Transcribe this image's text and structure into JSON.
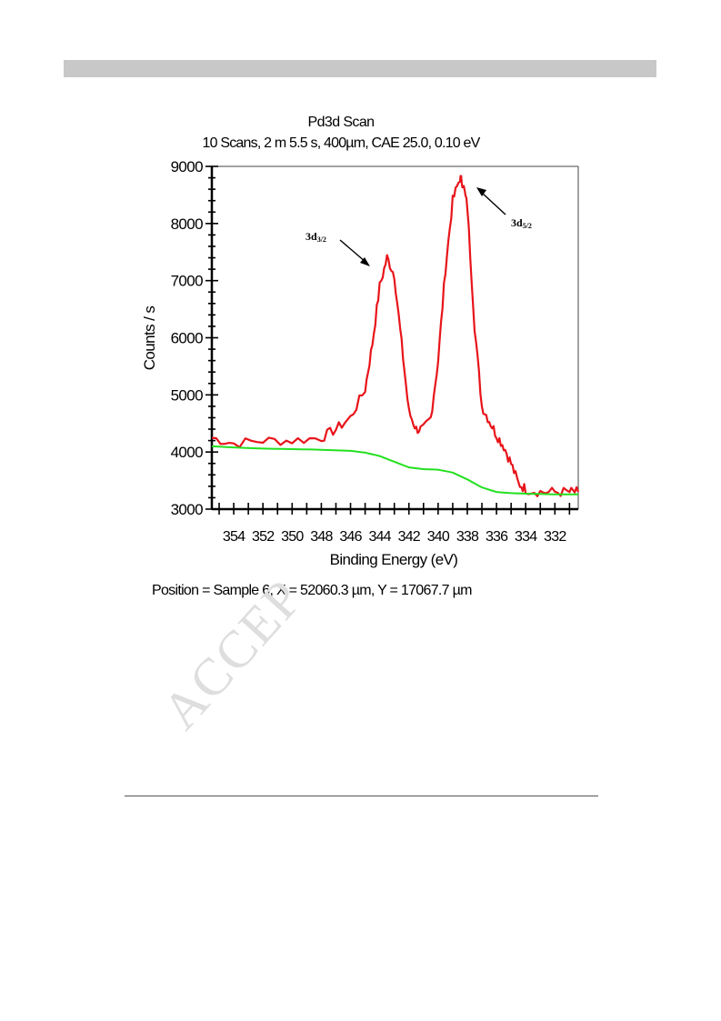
{
  "chart_data": {
    "type": "line",
    "title": "Pd3d Scan",
    "subtitle": "10 Scans,  2 m 5.5 s,  400µm,  CAE 25.0,  0.10 eV",
    "xlabel": "Binding Energy (eV)",
    "ylabel": "Counts / s",
    "x_reversed": true,
    "xlim": [
      355.5,
      330.4
    ],
    "ylim": [
      3000,
      9000
    ],
    "x_ticks": [
      "354",
      "352",
      "350",
      "348",
      "346",
      "344",
      "342",
      "340",
      "338",
      "336",
      "334",
      "332"
    ],
    "y_ticks": [
      "3000",
      "4000",
      "5000",
      "6000",
      "7000",
      "8000",
      "9000"
    ],
    "grid": false,
    "series": [
      {
        "color": "#e8141a",
        "x": [
          355.5,
          354,
          352,
          350,
          348,
          347,
          346,
          345,
          344.5,
          344,
          343.5,
          343,
          342.5,
          342,
          341.5,
          341,
          340.5,
          340,
          339.5,
          339,
          338.5,
          338.3,
          338,
          337.5,
          337,
          336.5,
          336,
          335.5,
          335,
          334.5,
          334,
          333,
          332,
          331,
          330.4
        ],
        "y": [
          4250,
          4150,
          4200,
          4200,
          4250,
          4400,
          4600,
          5100,
          5900,
          6900,
          7400,
          7100,
          5900,
          4700,
          4400,
          4400,
          4600,
          5600,
          7200,
          8400,
          8800,
          8700,
          8300,
          6200,
          4800,
          4550,
          4300,
          4100,
          3800,
          3450,
          3350,
          3300,
          3300,
          3300,
          3300
        ]
      },
      {
        "color": "#22e01e",
        "x": [
          355.5,
          354,
          352,
          350,
          348,
          346,
          345,
          344,
          343,
          342,
          341,
          340,
          339,
          338,
          337,
          336,
          335,
          334,
          333,
          332,
          331,
          330.4
        ],
        "y": [
          4100,
          4080,
          4060,
          4050,
          4040,
          4020,
          3990,
          3930,
          3830,
          3730,
          3700,
          3690,
          3640,
          3520,
          3380,
          3300,
          3280,
          3270,
          3265,
          3260,
          3260,
          3260
        ]
      }
    ],
    "annotations": [
      {
        "text": "3d",
        "sub": "3/2"
      },
      {
        "text": "3d",
        "sub": "5/2"
      }
    ],
    "caption": "Position = Sample 6, X = 52060.3 µm, Y = 17067.7 µm"
  },
  "watermark": "ACCEP",
  "colors": {
    "axes": "#000000",
    "header_bar": "#c8c8c8"
  }
}
